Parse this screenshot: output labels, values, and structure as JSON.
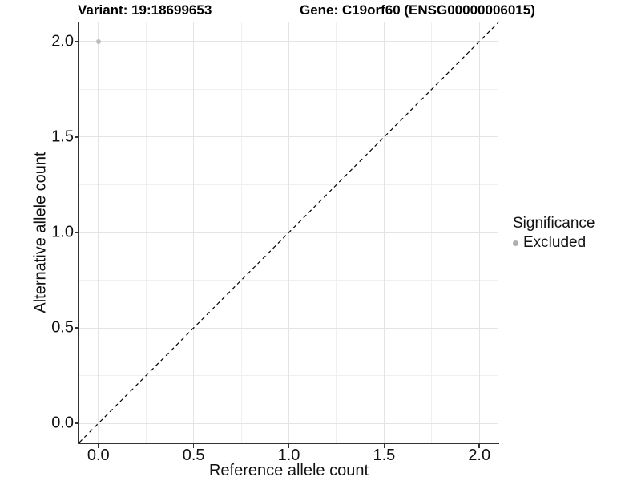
{
  "chart_data": {
    "type": "scatter",
    "title_left": "Variant: 19:18699653",
    "title_right": "Gene: C19orf60 (ENSG00000006015)",
    "xlabel": "Reference allele count",
    "ylabel": "Alternative allele count",
    "xlim": [
      -0.1,
      2.1
    ],
    "ylim": [
      -0.1,
      2.1
    ],
    "x_ticks": [
      0.0,
      0.5,
      1.0,
      1.5,
      2.0
    ],
    "y_ticks": [
      0.0,
      0.5,
      1.0,
      1.5,
      2.0
    ],
    "x_tick_labels": [
      "0.0",
      "0.5",
      "1.0",
      "1.5",
      "2.0"
    ],
    "y_tick_labels": [
      "0.0",
      "0.5",
      "1.0",
      "1.5",
      "2.0"
    ],
    "x_minor_ticks": [
      0.25,
      0.75,
      1.25,
      1.75
    ],
    "y_minor_ticks": [
      0.25,
      0.75,
      1.25,
      1.75
    ],
    "grid": true,
    "points": [
      {
        "x": 0.0,
        "y": 2.0,
        "series": "Excluded"
      }
    ],
    "reference_line": {
      "kind": "identity",
      "slope": 1,
      "intercept": 0,
      "style": "dashed"
    },
    "legend": {
      "title": "Significance",
      "position": "right",
      "entries": [
        {
          "label": "Excluded",
          "color": "#b0b0b0"
        }
      ]
    }
  },
  "colors": {
    "point": "#bdbdbd",
    "legend_dot": "#aaaaaa",
    "grid_major": "#e4e4e4",
    "grid_minor": "#f0f0f0",
    "axis": "#333333",
    "dashed_line": "#000000",
    "text": "#111111",
    "background": "#ffffff"
  }
}
